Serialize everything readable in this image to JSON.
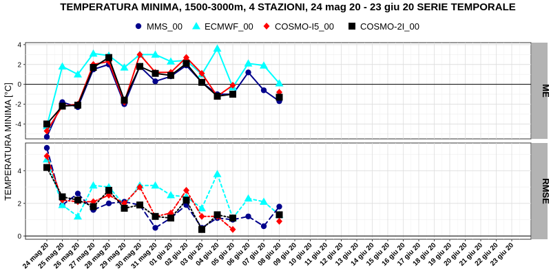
{
  "chart_data": {
    "type": "line",
    "title": "TEMPERATURA MINIMA, 1500-3000m, 4 STAZIONI, 24 mag 20 - 23 giu 20 SERIE TEMPORALE",
    "ylabel": "TEMPERATURA MINIMA [°C]",
    "xlabel": "",
    "legend_position": "top",
    "categories": [
      "24 mag 20",
      "25 mag 20",
      "26 mag 20",
      "27 mag 20",
      "28 mag 20",
      "29 mag 20",
      "30 mag 20",
      "31 mag 20",
      "01 giu 20",
      "02 giu 20",
      "03 giu 20",
      "04 giu 20",
      "05 giu 20",
      "06 giu 20",
      "07 giu 20",
      "08 giu 20",
      "09 giu 20",
      "10 giu 20",
      "11 giu 20",
      "12 giu 20",
      "13 giu 20",
      "14 giu 20",
      "15 giu 20",
      "16 giu 20",
      "17 giu 20",
      "18 giu 20",
      "19 giu 20",
      "20 giu 20",
      "21 giu 20",
      "22 giu 20",
      "23 giu 20"
    ],
    "series_styles": [
      {
        "name": "MMS_00",
        "color": "#00008b",
        "marker": "circle"
      },
      {
        "name": "ECMWF_00",
        "color": "#00ffff",
        "marker": "triangle"
      },
      {
        "name": "COSMO-I5_00",
        "color": "#ff0000",
        "marker": "diamond"
      },
      {
        "name": "COSMO-2I_00",
        "color": "#000000",
        "marker": "square"
      }
    ],
    "panels": [
      {
        "strip": "ME",
        "ylim": [
          -5.5,
          4.2
        ],
        "yticks": [
          -4,
          -2,
          0,
          2,
          4
        ],
        "zero_line": true,
        "line_style": "solid",
        "series": [
          {
            "name": "MMS_00",
            "values": [
              -5.3,
              -1.8,
              -2.3,
              1.5,
              2.0,
              -2.0,
              1.8,
              0.3,
              0.8,
              1.9,
              0.2,
              -1.0,
              -1.0,
              1.2,
              -0.6,
              -1.7,
              null,
              null,
              null,
              null,
              null,
              null,
              null,
              null,
              null,
              null,
              null,
              null,
              null,
              null,
              null
            ]
          },
          {
            "name": "ECMWF_00",
            "values": [
              -4.2,
              1.8,
              1.0,
              3.1,
              2.9,
              1.7,
              3.0,
              3.0,
              2.3,
              2.4,
              1.0,
              3.6,
              -0.3,
              2.1,
              1.9,
              0.1,
              null,
              null,
              null,
              null,
              null,
              null,
              null,
              null,
              null,
              null,
              null,
              null,
              null,
              null,
              null
            ]
          },
          {
            "name": "COSMO-I5_00",
            "values": [
              -4.7,
              -2.2,
              -2.0,
              2.0,
              2.3,
              -1.8,
              3.0,
              1.2,
              1.2,
              2.7,
              1.1,
              -1.2,
              -0.1,
              null,
              null,
              -0.8,
              null,
              null,
              null,
              null,
              null,
              null,
              null,
              null,
              null,
              null,
              null,
              null,
              null,
              null,
              null
            ]
          },
          {
            "name": "COSMO-2I_00",
            "values": [
              -4.0,
              -2.2,
              -2.1,
              1.7,
              2.7,
              -1.6,
              1.8,
              1.1,
              0.9,
              2.1,
              0.2,
              -1.2,
              -1.0,
              null,
              null,
              -1.3,
              null,
              null,
              null,
              null,
              null,
              null,
              null,
              null,
              null,
              null,
              null,
              null,
              null,
              null,
              null
            ]
          }
        ]
      },
      {
        "strip": "RMSE",
        "ylim": [
          -0.2,
          5.7
        ],
        "yticks": [
          0,
          2,
          4
        ],
        "zero_line": true,
        "line_style": "dashed",
        "series": [
          {
            "name": "MMS_00",
            "values": [
              5.4,
              1.9,
              2.6,
              1.6,
              2.0,
              2.1,
              1.9,
              0.5,
              1.1,
              1.9,
              0.5,
              1.1,
              1.0,
              1.2,
              0.6,
              1.8,
              null,
              null,
              null,
              null,
              null,
              null,
              null,
              null,
              null,
              null,
              null,
              null,
              null,
              null,
              null
            ]
          },
          {
            "name": "ECMWF_00",
            "values": [
              4.7,
              1.9,
              1.2,
              3.1,
              3.0,
              1.9,
              3.1,
              3.1,
              2.5,
              2.4,
              1.7,
              3.8,
              1.1,
              2.3,
              2.1,
              1.3,
              null,
              null,
              null,
              null,
              null,
              null,
              null,
              null,
              null,
              null,
              null,
              null,
              null,
              null,
              null
            ]
          },
          {
            "name": "COSMO-I5_00",
            "values": [
              4.9,
              2.2,
              2.1,
              2.1,
              2.5,
              2.0,
              3.0,
              1.2,
              1.4,
              2.8,
              1.2,
              1.2,
              0.4,
              null,
              null,
              0.9,
              null,
              null,
              null,
              null,
              null,
              null,
              null,
              null,
              null,
              null,
              null,
              null,
              null,
              null,
              null
            ]
          },
          {
            "name": "COSMO-2I_00",
            "values": [
              4.2,
              2.4,
              2.2,
              1.8,
              2.8,
              1.7,
              1.9,
              1.2,
              1.1,
              2.2,
              0.4,
              1.3,
              1.1,
              null,
              null,
              1.3,
              null,
              null,
              null,
              null,
              null,
              null,
              null,
              null,
              null,
              null,
              null,
              null,
              null,
              null,
              null
            ]
          }
        ]
      }
    ]
  }
}
